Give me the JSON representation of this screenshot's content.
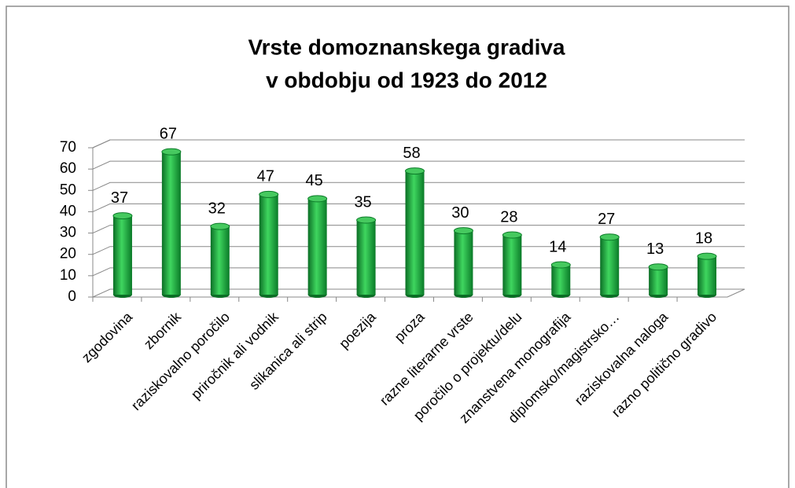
{
  "chart_data": {
    "type": "bar3d",
    "title": [
      "Vrste domoznanskega gradiva",
      "v obdobju od 1923 do 2012"
    ],
    "categories": [
      "zgodovina",
      "zbornik",
      "raziskovalno poročilo",
      "priročnik ali vodnik",
      "slikanica ali strip",
      "poezija",
      "proza",
      "razne literarne vrste",
      "poročilo o projektu/delu",
      "znanstvena monografija",
      "diplomsko/magistrsko…",
      "raziskovalna naloga",
      "razno politično gradivo"
    ],
    "values": [
      37,
      67,
      32,
      47,
      45,
      35,
      58,
      30,
      28,
      14,
      27,
      13,
      18
    ],
    "color": "#1db43f",
    "ylim": [
      0,
      70
    ],
    "yticks": [
      0,
      10,
      20,
      30,
      40,
      50,
      60,
      70
    ],
    "grid": true
  }
}
